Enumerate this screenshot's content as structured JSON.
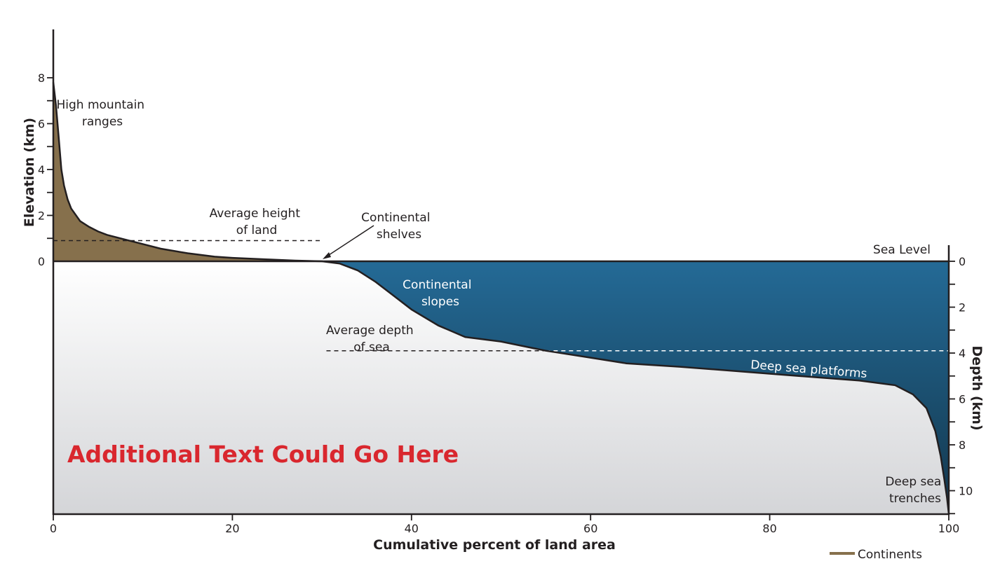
{
  "chart_data": {
    "type": "area",
    "xlabel": "Cumulative percent of land area",
    "ylabel_left": "Elevation (km)",
    "ylabel_right": "Depth (km)",
    "xlim": [
      0,
      100
    ],
    "x_ticks": [
      "0",
      "20",
      "40",
      "60",
      "80",
      "100"
    ],
    "elevation_ylim": [
      0,
      10
    ],
    "elevation_ticks": [
      "0",
      "2",
      "4",
      "6",
      "8"
    ],
    "depth_ylim": [
      0,
      11
    ],
    "depth_ticks": [
      "0",
      "2",
      "4",
      "6",
      "8",
      "10"
    ],
    "curve": {
      "x": [
        0,
        0.3,
        0.6,
        0.9,
        1.2,
        1.6,
        2,
        3,
        4,
        5,
        6,
        8,
        10,
        12,
        15,
        18,
        20,
        24,
        27,
        30,
        32,
        34,
        36,
        38,
        40,
        43,
        46,
        50,
        55,
        60,
        64,
        70,
        80,
        90,
        94,
        96,
        97.5,
        98.5,
        99.1,
        99.5,
        99.8,
        100
      ],
      "y_km": [
        7.8,
        6.8,
        5.4,
        4.0,
        3.3,
        2.7,
        2.3,
        1.75,
        1.5,
        1.3,
        1.15,
        0.95,
        0.75,
        0.55,
        0.35,
        0.2,
        0.15,
        0.08,
        0.03,
        0,
        -0.1,
        -0.4,
        -0.9,
        -1.5,
        -2.1,
        -2.8,
        -3.3,
        -3.5,
        -3.9,
        -4.2,
        -4.45,
        -4.6,
        -4.9,
        -5.2,
        -5.4,
        -5.8,
        -6.4,
        -7.4,
        -8.5,
        -9.5,
        -10.3,
        -11
      ]
    },
    "average_height_of_land_km": 0.9,
    "average_depth_of_sea_km": 3.9,
    "annotations": {
      "mountains": [
        "High mountain",
        "ranges"
      ],
      "avg_height": [
        "Average height",
        "of land"
      ],
      "shelves": [
        "Continental",
        "shelves"
      ],
      "sea_level": "Sea Level",
      "slopes": [
        "Continental",
        "slopes"
      ],
      "avg_depth": [
        "Average depth",
        "of sea"
      ],
      "platforms": "Deep sea platforms",
      "trenches": [
        "Deep sea",
        "trenches"
      ],
      "extra_text": "Additional Text Could Go Here"
    },
    "legend": {
      "label": "Continents",
      "color": "#86704c",
      "placement": "bottom-right"
    },
    "colors": {
      "land": "#86704c",
      "ocean_top": "#246a96",
      "ocean_bottom": "#13374d",
      "text_highlight": "#d9272e"
    }
  }
}
